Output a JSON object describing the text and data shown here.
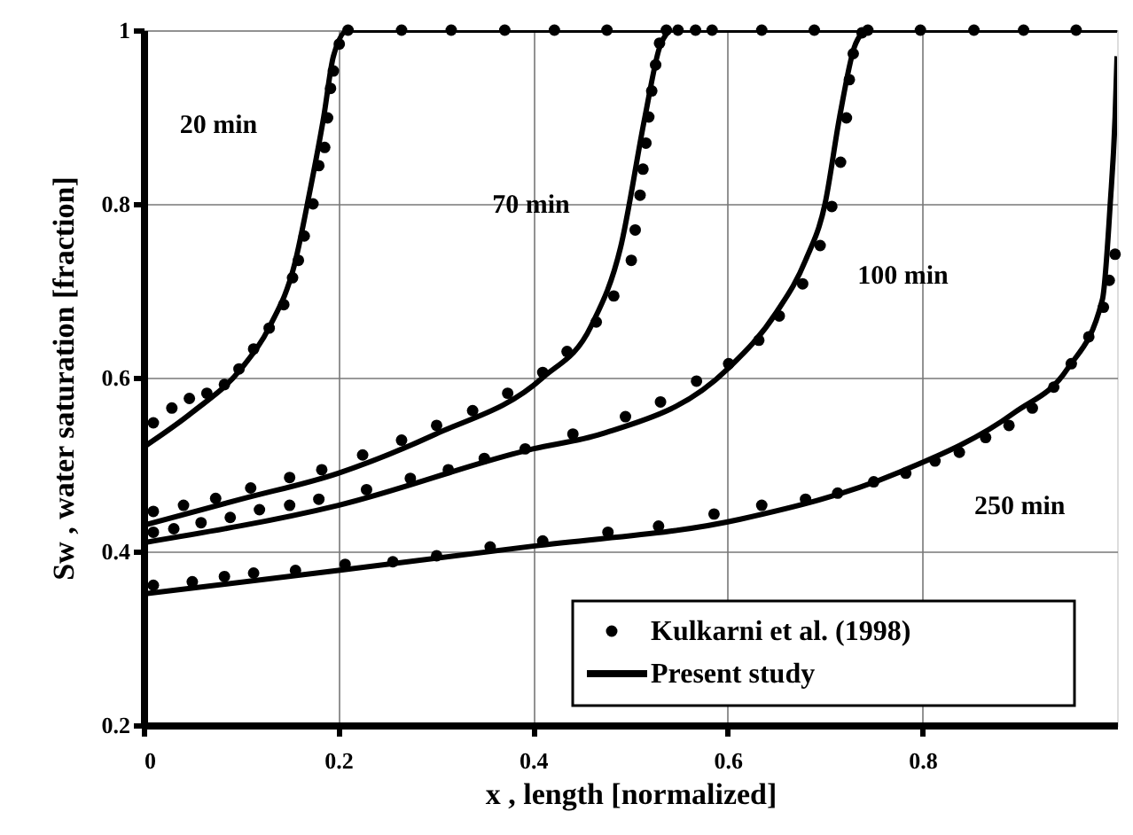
{
  "chart_data": {
    "type": "line",
    "xlabel": "x , length [normalized]",
    "ylabel": "Sw , water saturation [fraction]",
    "xlim": [
      0,
      1
    ],
    "ylim": [
      0.2,
      1
    ],
    "xticks": [
      0,
      0.2,
      0.4,
      0.6,
      0.8
    ],
    "yticks": [
      0.2,
      0.4,
      0.6,
      0.8,
      1
    ],
    "grid": true,
    "legend": "bottom right",
    "line_style": "solid",
    "annotations": [
      "20 min",
      "70 min",
      "100 min",
      "250 min"
    ],
    "series": [
      {
        "name": "Kulkarni et al. (1998)",
        "type": "scatter",
        "marker": "circle",
        "color": "#000000",
        "x": [
          0.01,
          0.029,
          0.047,
          0.065,
          0.083,
          0.098,
          0.113,
          0.129,
          0.144,
          0.153,
          0.159,
          0.165,
          0.174,
          0.18,
          0.186,
          0.189,
          0.192,
          0.195,
          0.201,
          0.21,
          0.265,
          0.316,
          0.371,
          0.422,
          0.476,
          0.549,
          0.567,
          0.584,
          0.635,
          0.689,
          0.744,
          0.798,
          0.853,
          0.904,
          0.958,
          0.01,
          0.041,
          0.074,
          0.11,
          0.15,
          0.183,
          0.225,
          0.265,
          0.301,
          0.338,
          0.374,
          0.41,
          0.435,
          0.465,
          0.483,
          0.501,
          0.505,
          0.51,
          0.513,
          0.516,
          0.519,
          0.522,
          0.526,
          0.53,
          0.537,
          0.01,
          0.031,
          0.059,
          0.089,
          0.119,
          0.15,
          0.18,
          0.229,
          0.274,
          0.313,
          0.35,
          0.392,
          0.441,
          0.495,
          0.531,
          0.568,
          0.601,
          0.632,
          0.653,
          0.677,
          0.695,
          0.707,
          0.716,
          0.722,
          0.725,
          0.729,
          0.738,
          0.01,
          0.05,
          0.083,
          0.113,
          0.156,
          0.207,
          0.256,
          0.301,
          0.356,
          0.41,
          0.477,
          0.529,
          0.586,
          0.635,
          0.68,
          0.713,
          0.75,
          0.783,
          0.813,
          0.838,
          0.865,
          0.889,
          0.913,
          0.935,
          0.953,
          0.971,
          0.986,
          0.992,
          0.998
        ],
        "values": [
          0.548,
          0.565,
          0.576,
          0.582,
          0.592,
          0.61,
          0.633,
          0.657,
          0.684,
          0.715,
          0.735,
          0.763,
          0.8,
          0.844,
          0.865,
          0.899,
          0.933,
          0.953,
          0.984,
          1.0,
          1,
          1,
          1,
          1,
          1,
          1,
          1,
          1,
          1,
          1,
          1,
          1,
          1,
          1,
          1,
          0.446,
          0.453,
          0.461,
          0.473,
          0.485,
          0.494,
          0.511,
          0.528,
          0.545,
          0.562,
          0.582,
          0.606,
          0.63,
          0.664,
          0.694,
          0.735,
          0.77,
          0.81,
          0.84,
          0.87,
          0.9,
          0.93,
          0.96,
          0.985,
          1.0,
          0.422,
          0.426,
          0.433,
          0.439,
          0.448,
          0.453,
          0.46,
          0.471,
          0.484,
          0.494,
          0.507,
          0.518,
          0.535,
          0.555,
          0.572,
          0.596,
          0.616,
          0.643,
          0.671,
          0.708,
          0.752,
          0.797,
          0.848,
          0.899,
          0.943,
          0.973,
          0.997,
          0.361,
          0.365,
          0.371,
          0.375,
          0.378,
          0.385,
          0.388,
          0.395,
          0.405,
          0.412,
          0.422,
          0.429,
          0.443,
          0.453,
          0.46,
          0.467,
          0.48,
          0.49,
          0.504,
          0.514,
          0.531,
          0.545,
          0.565,
          0.589,
          0.616,
          0.647,
          0.681,
          0.712,
          0.742
        ]
      },
      {
        "name": "Present study",
        "color": "#000000",
        "x": [
          0,
          0.05,
          0.1,
          0.13,
          0.155,
          0.17,
          0.185,
          0.195,
          0.21,
          1.0
        ],
        "values": [
          0.52,
          0.56,
          0.61,
          0.66,
          0.73,
          0.81,
          0.9,
          0.97,
          1.0,
          1.0
        ]
      },
      {
        "color": "#000000",
        "x": [
          0,
          0.1,
          0.2,
          0.3,
          0.41,
          0.46,
          0.49,
          0.515,
          0.53,
          0.54
        ],
        "values": [
          0.43,
          0.46,
          0.49,
          0.535,
          0.6,
          0.66,
          0.75,
          0.9,
          0.98,
          1.0
        ]
      },
      {
        "color": "#000000",
        "x": [
          0,
          0.2,
          0.4,
          0.47,
          0.6,
          0.65,
          0.68,
          0.7,
          0.715,
          0.73,
          0.74
        ],
        "values": [
          0.41,
          0.453,
          0.518,
          0.535,
          0.61,
          0.675,
          0.735,
          0.8,
          0.9,
          0.98,
          1.0
        ]
      },
      {
        "color": "#000000",
        "x": [
          0,
          0.2,
          0.4,
          0.613,
          0.774,
          0.895,
          0.949,
          0.985,
          0.993,
          0.998,
          1.0
        ],
        "values": [
          0.351,
          0.378,
          0.406,
          0.437,
          0.49,
          0.56,
          0.61,
          0.69,
          0.8,
          0.9,
          0.97
        ]
      }
    ]
  }
}
